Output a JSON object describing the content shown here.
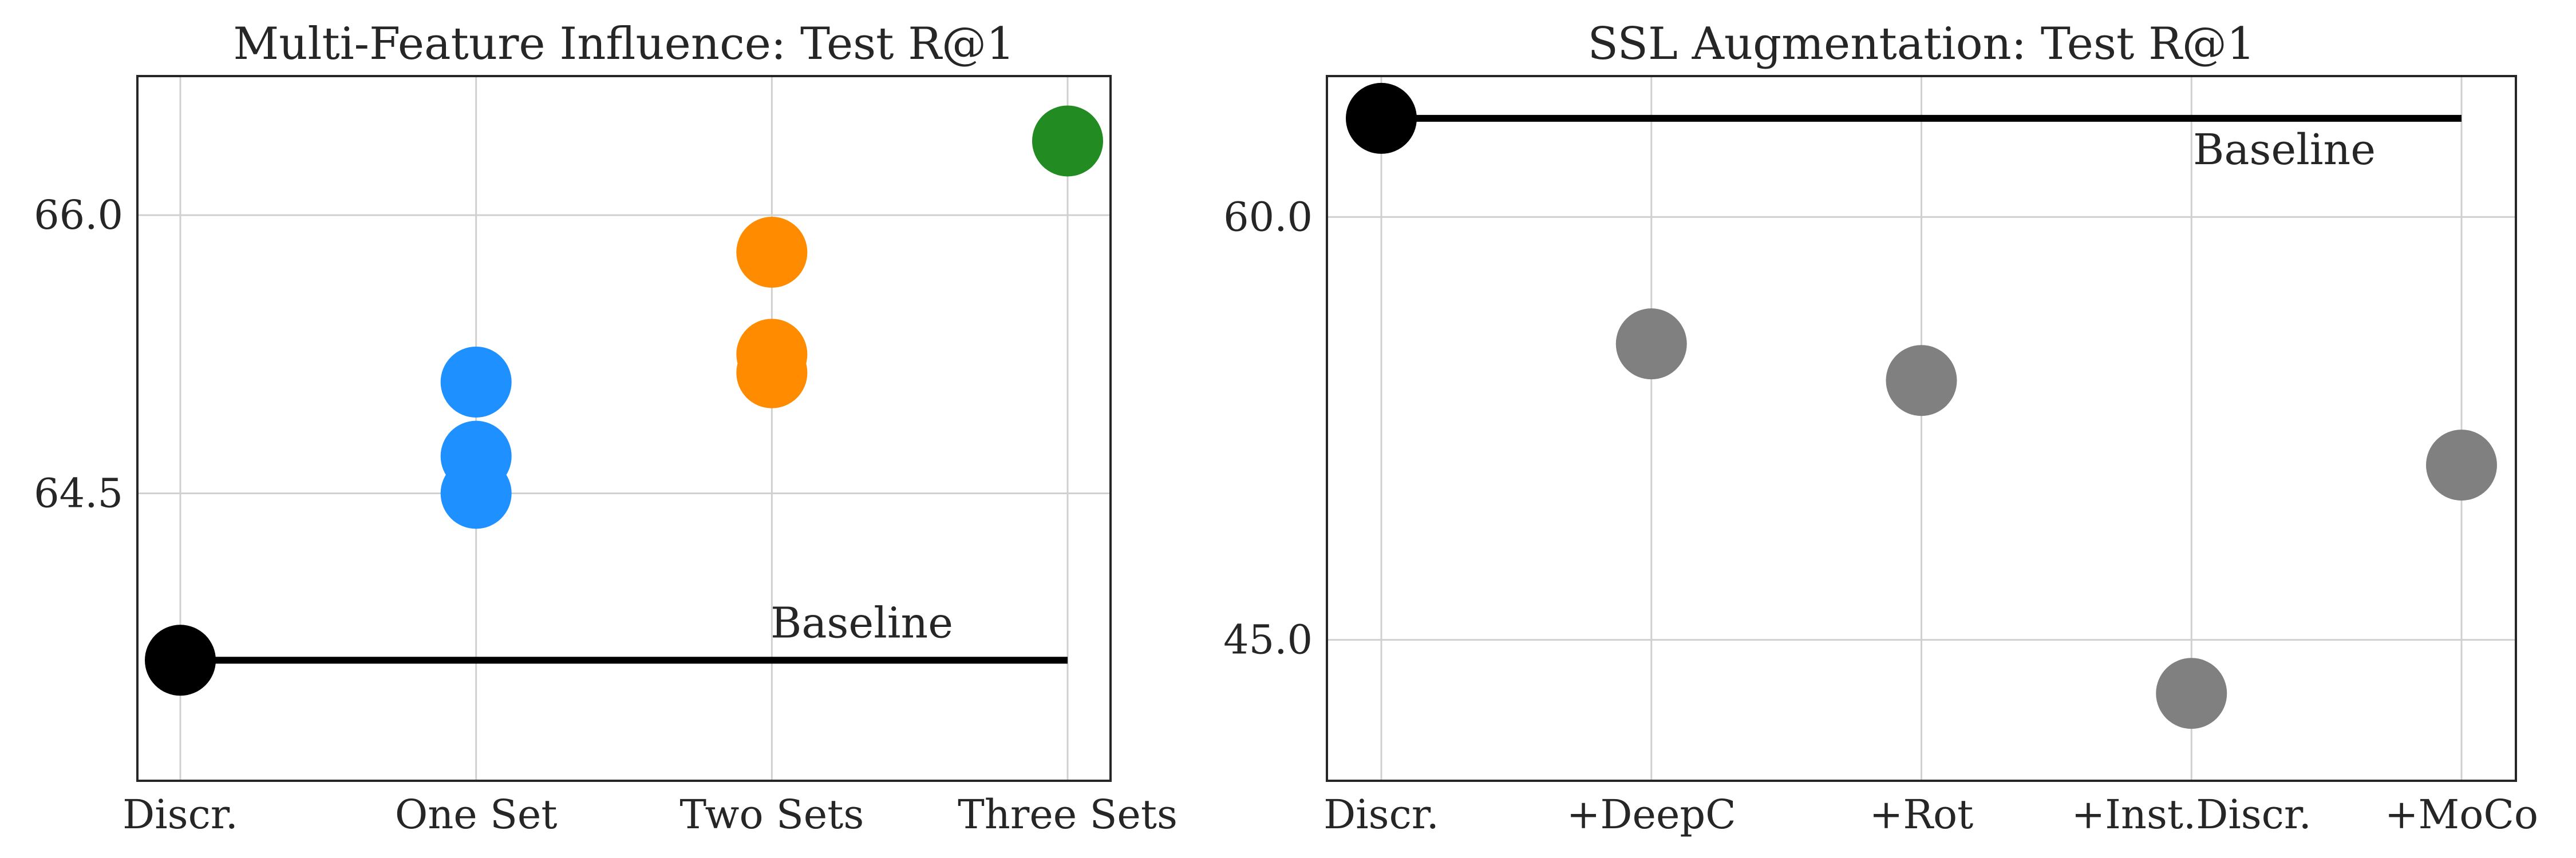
{
  "chart_data": [
    {
      "type": "scatter",
      "title": "Multi-Feature Influence: Test R@1",
      "xlabel": "",
      "ylabel": "",
      "categories": [
        "Discr.",
        "One Set",
        "Two Sets",
        "Three Sets"
      ],
      "category_colors": [
        "#000000",
        "#1e90ff",
        "#ff8c00",
        "#228b22"
      ],
      "points": [
        {
          "category": "Discr.",
          "values": [
            63.6
          ]
        },
        {
          "category": "One Set",
          "values": [
            65.1,
            64.7,
            64.5
          ]
        },
        {
          "category": "Two Sets",
          "values": [
            65.8,
            65.25,
            65.15
          ]
        },
        {
          "category": "Three Sets",
          "values": [
            66.4
          ]
        }
      ],
      "baseline": {
        "label": "Baseline",
        "value": 63.6
      },
      "yticks": [
        64.5,
        66.0
      ],
      "ytick_labels": [
        "64.5",
        "66.0"
      ],
      "ylim": [
        62.95,
        66.75
      ],
      "grid": true
    },
    {
      "type": "scatter",
      "title": "SSL Augmentation: Test R@1",
      "xlabel": "",
      "ylabel": "",
      "categories": [
        "Discr.",
        "+DeepC",
        "+Rot",
        "+Inst.Discr.",
        "+MoCo"
      ],
      "category_colors": [
        "#000000",
        "#808080",
        "#808080",
        "#808080",
        "#808080"
      ],
      "points": [
        {
          "category": "Discr.",
          "values": [
            63.5
          ]
        },
        {
          "category": "+DeepC",
          "values": [
            55.5
          ]
        },
        {
          "category": "+Rot",
          "values": [
            54.2
          ]
        },
        {
          "category": "+Inst.Discr.",
          "values": [
            43.1
          ]
        },
        {
          "category": "+MoCo",
          "values": [
            51.2
          ]
        }
      ],
      "baseline": {
        "label": "Baseline",
        "value": 63.5
      },
      "yticks": [
        45.0,
        60.0
      ],
      "ytick_labels": [
        "45.0",
        "60.0"
      ],
      "ylim": [
        40.0,
        65.0
      ],
      "grid": true
    }
  ]
}
